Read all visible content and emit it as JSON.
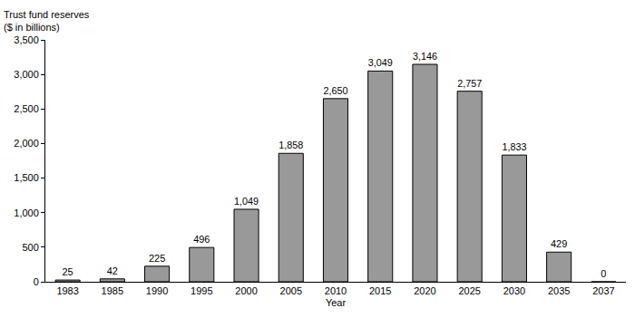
{
  "chart_data": {
    "type": "bar",
    "y_label": [
      "Trust fund reserves",
      "($ in billions)"
    ],
    "x_label": "Year",
    "categories": [
      "1983",
      "1985",
      "1990",
      "1995",
      "2000",
      "2005",
      "2010",
      "2015",
      "2020",
      "2025",
      "2030",
      "2035",
      "2037"
    ],
    "values": [
      25,
      42,
      225,
      496,
      1049,
      1858,
      2650,
      3049,
      3146,
      2757,
      1833,
      429,
      0
    ],
    "value_labels": [
      "25",
      "42",
      "225",
      "496",
      "1,049",
      "1,858",
      "2,650",
      "3,049",
      "3,146",
      "2,757",
      "1,833",
      "429",
      "0"
    ],
    "color": "#999999",
    "data_labels": true,
    "grid": false,
    "ylim": [
      0,
      3500
    ],
    "yticks": [
      0,
      500,
      {
        "value": 1000,
        "label": "1,000"
      },
      {
        "value": 1500,
        "label": "1,500"
      },
      {
        "value": 2000,
        "label": "2,000"
      },
      {
        "value": 2500,
        "label": "2,500"
      },
      {
        "value": 3000,
        "label": "3,000"
      },
      {
        "value": 3500,
        "label": "3,500"
      }
    ]
  }
}
